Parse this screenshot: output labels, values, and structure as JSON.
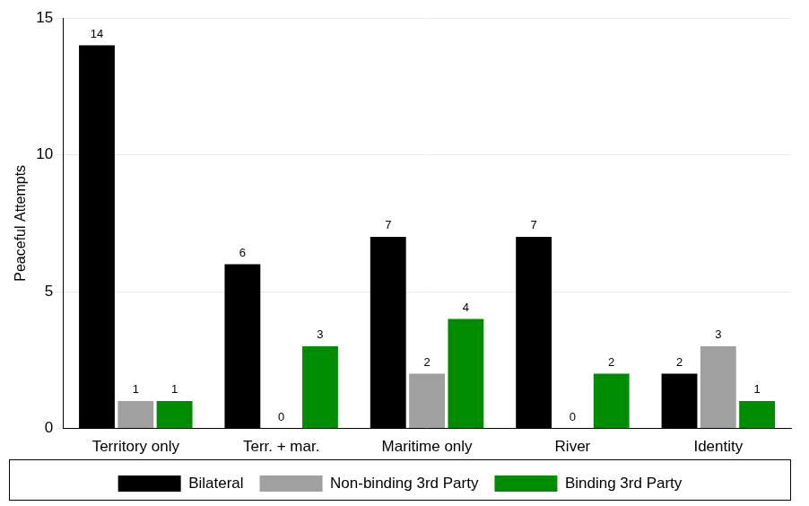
{
  "chart_data": {
    "type": "bar",
    "categories": [
      "Territory only",
      "Terr. + mar.",
      "Maritime only",
      "River",
      "Identity"
    ],
    "series": [
      {
        "name": "Bilateral",
        "color": "#000000",
        "values": [
          14,
          6,
          7,
          7,
          2
        ]
      },
      {
        "name": "Non-binding 3rd Party",
        "color": "#a0a0a0",
        "values": [
          1,
          0,
          2,
          0,
          3
        ]
      },
      {
        "name": "Binding 3rd Party",
        "color": "#008c00",
        "values": [
          1,
          3,
          4,
          2,
          1
        ]
      }
    ],
    "ylabel": "Peaceful Attempts",
    "ylim": [
      0,
      15
    ],
    "yticks": [
      0,
      5,
      10,
      15
    ],
    "grid": true,
    "legend": "bottom",
    "data_labels": true
  }
}
